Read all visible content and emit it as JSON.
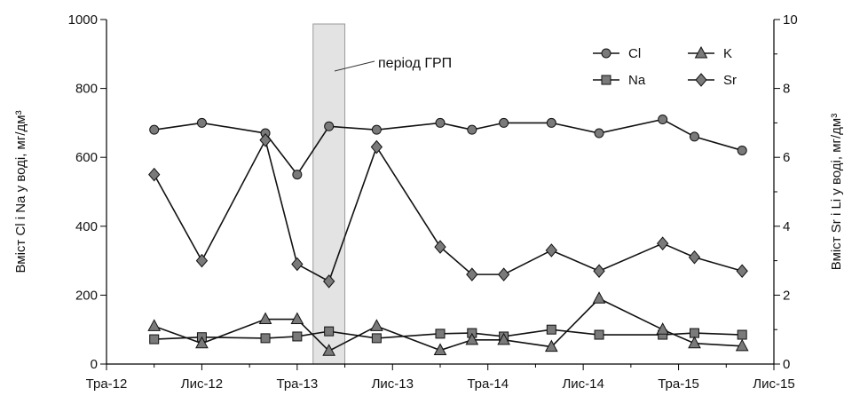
{
  "chart_data": {
    "type": "line",
    "xlabel": "",
    "ylabel_left": "Вміст Cl і Na у воді, мг/дм³",
    "ylabel_right": "Вміст Sr і Li у воді, мг/дм³",
    "x_ticks": [
      "Тра-12",
      "Лис-12",
      "Тра-13",
      "Лис-13",
      "Тра-14",
      "Лис-14",
      "Тра-15",
      "Лис-15"
    ],
    "x_range": [
      "2012-05",
      "2015-11"
    ],
    "ylim_left": [
      0,
      1000
    ],
    "ylim_right": [
      0,
      10
    ],
    "y_ticks_left": [
      0,
      200,
      400,
      600,
      800,
      1000
    ],
    "y_ticks_right": [
      0,
      2,
      4,
      6,
      8,
      10
    ],
    "grid": false,
    "legend_position": "top-right",
    "annotation": {
      "label": "період ГРП",
      "start": "2013-06",
      "end": "2013-08"
    },
    "series": [
      {
        "name": "Cl",
        "marker": "circle",
        "axis": "left",
        "x": [
          "2012-08",
          "2012-11",
          "2013-03",
          "2013-05",
          "2013-07",
          "2013-10",
          "2014-02",
          "2014-04",
          "2014-06",
          "2014-09",
          "2014-12",
          "2015-04",
          "2015-06",
          "2015-09"
        ],
        "y": [
          680,
          700,
          670,
          550,
          690,
          680,
          700,
          680,
          700,
          700,
          670,
          710,
          660,
          620
        ]
      },
      {
        "name": "Na",
        "marker": "square",
        "axis": "left",
        "x": [
          "2012-08",
          "2012-11",
          "2013-03",
          "2013-05",
          "2013-07",
          "2013-10",
          "2014-02",
          "2014-04",
          "2014-06",
          "2014-09",
          "2014-12",
          "2015-04",
          "2015-06",
          "2015-09"
        ],
        "y": [
          72,
          78,
          75,
          80,
          95,
          75,
          88,
          90,
          80,
          100,
          85,
          85,
          90,
          85
        ]
      },
      {
        "name": "K",
        "marker": "triangle",
        "axis": "left",
        "x": [
          "2012-08",
          "2012-11",
          "2013-03",
          "2013-05",
          "2013-07",
          "2013-10",
          "2014-02",
          "2014-04",
          "2014-06",
          "2014-09",
          "2014-12",
          "2015-04",
          "2015-06",
          "2015-09"
        ],
        "y": [
          110,
          60,
          130,
          130,
          38,
          110,
          40,
          70,
          70,
          50,
          190,
          100,
          60,
          52
        ]
      },
      {
        "name": "Sr",
        "marker": "diamond",
        "axis": "right",
        "x": [
          "2012-08",
          "2012-11",
          "2013-03",
          "2013-05",
          "2013-07",
          "2013-10",
          "2014-02",
          "2014-04",
          "2014-06",
          "2014-09",
          "2014-12",
          "2015-04",
          "2015-06",
          "2015-09"
        ],
        "y": [
          5.5,
          3.0,
          6.5,
          2.9,
          2.4,
          6.3,
          3.4,
          2.6,
          2.6,
          3.3,
          2.7,
          3.5,
          3.1,
          2.7
        ]
      }
    ]
  }
}
